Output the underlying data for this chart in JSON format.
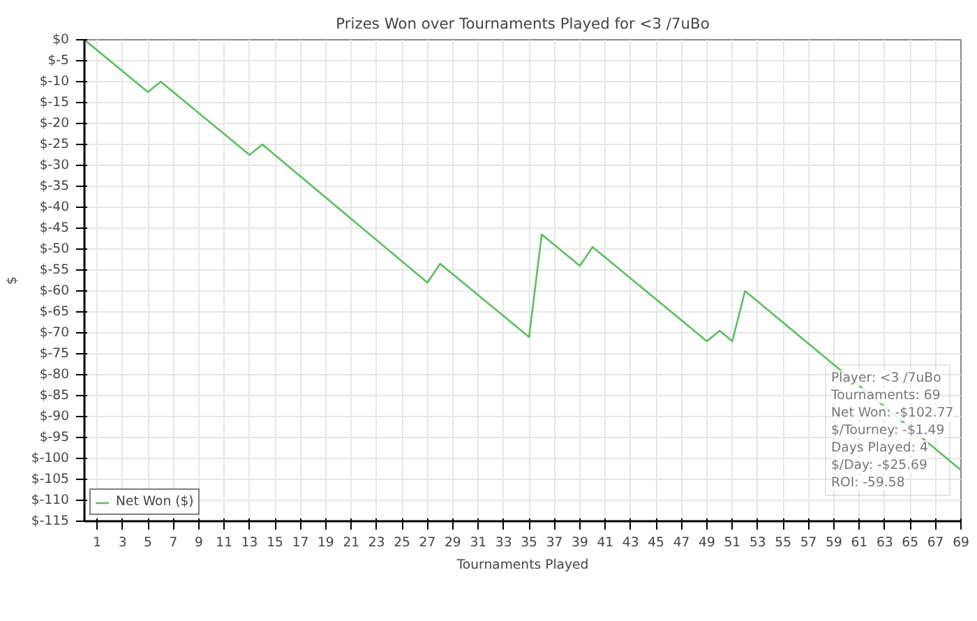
{
  "chart_data": {
    "type": "line",
    "title": "Prizes Won over Tournaments Played for <3 /7uBo",
    "xlabel": "Tournaments Played",
    "ylabel": "$",
    "x": [
      0,
      5,
      6,
      13,
      14,
      27,
      28,
      35,
      36,
      39,
      40,
      49,
      50,
      51,
      52,
      69
    ],
    "series": [
      {
        "name": "Net Won ($)",
        "color": "#5cbf5c",
        "values": [
          0,
          -12.5,
          -10,
          -27.5,
          -25,
          -58,
          -53.5,
          -71,
          -46.5,
          -54,
          -49.5,
          -72,
          -69.5,
          -72,
          -60,
          -102.8
        ]
      }
    ],
    "xlim": [
      0,
      69
    ],
    "xticks": [
      1,
      3,
      5,
      7,
      9,
      11,
      13,
      15,
      17,
      19,
      21,
      23,
      25,
      27,
      29,
      31,
      33,
      35,
      37,
      39,
      41,
      43,
      45,
      47,
      49,
      51,
      53,
      55,
      57,
      59,
      61,
      63,
      65,
      67,
      69
    ],
    "ylim": [
      -115,
      0
    ],
    "yticks": [
      {
        "value": 0,
        "label": "$0"
      },
      {
        "value": -5,
        "label": "$-5"
      },
      {
        "value": -10,
        "label": "$-10"
      },
      {
        "value": -15,
        "label": "$-15"
      },
      {
        "value": -20,
        "label": "$-20"
      },
      {
        "value": -25,
        "label": "$-25"
      },
      {
        "value": -30,
        "label": "$-30"
      },
      {
        "value": -35,
        "label": "$-35"
      },
      {
        "value": -40,
        "label": "$-40"
      },
      {
        "value": -45,
        "label": "$-45"
      },
      {
        "value": -50,
        "label": "$-50"
      },
      {
        "value": -55,
        "label": "$-55"
      },
      {
        "value": -60,
        "label": "$-60"
      },
      {
        "value": -65,
        "label": "$-65"
      },
      {
        "value": -70,
        "label": "$-70"
      },
      {
        "value": -75,
        "label": "$-75"
      },
      {
        "value": -80,
        "label": "$-80"
      },
      {
        "value": -85,
        "label": "$-85"
      },
      {
        "value": -90,
        "label": "$-90"
      },
      {
        "value": -95,
        "label": "$-95"
      },
      {
        "value": -100,
        "label": "$-100"
      },
      {
        "value": -105,
        "label": "$-105"
      },
      {
        "value": -110,
        "label": "$-110"
      },
      {
        "value": -115,
        "label": "$-115"
      }
    ],
    "grid": true,
    "legend": "bottom left",
    "marker": "none",
    "line_style": "solid",
    "annotations": [
      "Player: <3 /7uBo",
      "Tournaments: 69",
      "Net Won: -$102.77",
      "$/Tourney: -$1.49",
      "Days Played: 4",
      "$/Day: -$25.69",
      "ROI: -59.58"
    ]
  }
}
